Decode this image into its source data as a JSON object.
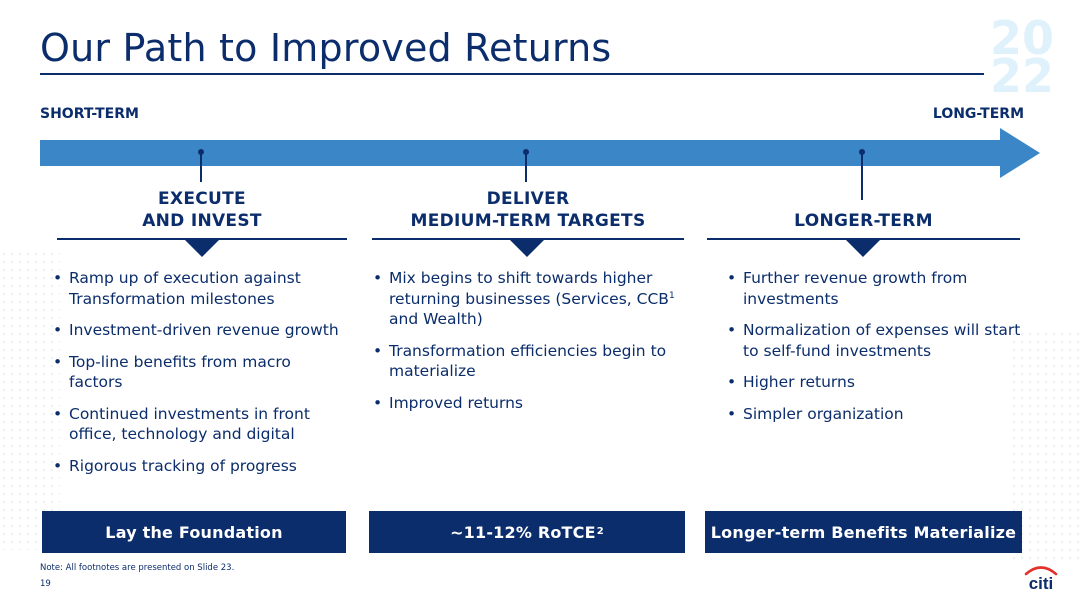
{
  "title": "Our Path to Improved Returns",
  "year_mark": [
    "20",
    "22"
  ],
  "timeline": {
    "start_label": "SHORT-TERM",
    "end_label": "LONG-TERM"
  },
  "columns": [
    {
      "heading": [
        "EXECUTE",
        "AND INVEST"
      ],
      "bullets": [
        "Ramp up of execution against Transformation milestones",
        "Investment-driven revenue growth",
        "Top-line benefits from macro factors",
        "Continued investments in front office, technology and digital",
        "Rigorous tracking of progress"
      ],
      "banner": "Lay the Foundation"
    },
    {
      "heading": [
        "DELIVER",
        "MEDIUM-TERM TARGETS"
      ],
      "bullets": [
        {
          "before": "Mix begins to shift towards higher returning businesses (Services, CCB",
          "sup": "1",
          "after": " and Wealth)"
        },
        "Transformation efficiencies begin to materialize",
        "Improved returns"
      ],
      "banner": {
        "text": "~11-12% RoTCE",
        "sup": "2"
      }
    },
    {
      "heading": [
        "",
        "LONGER-TERM"
      ],
      "bullets": [
        "Further revenue growth from investments",
        "Normalization of expenses will start to self-fund investments",
        "Higher returns",
        "Simpler organization"
      ],
      "banner": "Longer-term Benefits Materialize"
    }
  ],
  "footnote": "Note: All footnotes are presented on Slide 23.",
  "page_number": "19",
  "logo_text": "citi",
  "colors": {
    "navy": "#0b2d6b",
    "arrow_blue": "#3b86c6",
    "logo_red": "#e0312b"
  }
}
